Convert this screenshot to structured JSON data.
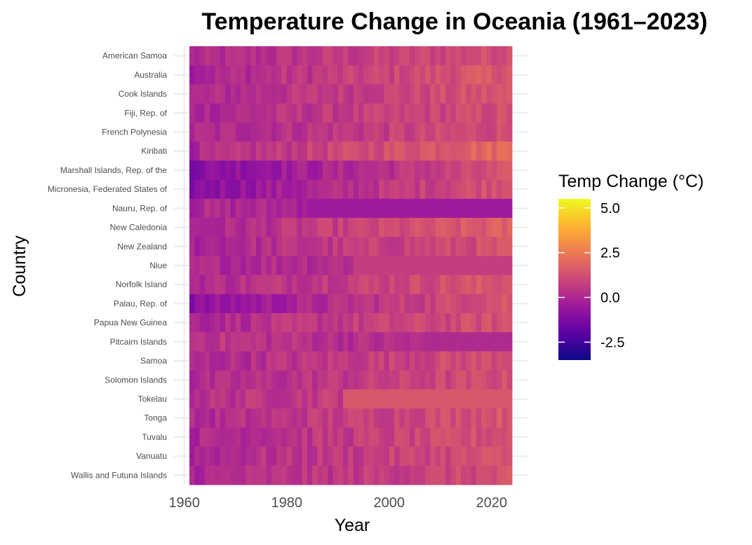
{
  "chart_data": {
    "type": "heatmap",
    "title": "Temperature Change in Oceania (1961–2023)",
    "xlabel": "Year",
    "ylabel": "Country",
    "x_ticks": [
      1960,
      1980,
      2000,
      2020
    ],
    "xlim": [
      1961,
      2023
    ],
    "countries": [
      "American Samoa",
      "Australia",
      "Cook Islands",
      "Fiji, Rep. of",
      "French Polynesia",
      "Kiribati",
      "Marshall Islands, Rep. of the",
      "Micronesia, Federated States of",
      "Nauru, Rep. of",
      "New Caledonia",
      "New Zealand",
      "Niue",
      "Norfolk Island",
      "Palau, Rep. of",
      "Papua New Guinea",
      "Pitcairn Islands",
      "Samoa",
      "Solomon Islands",
      "Tokelau",
      "Tonga",
      "Tuvalu",
      "Vanuatu",
      "Wallis and Futuna Islands"
    ],
    "series_profiles": [
      {
        "start": 0.0,
        "end": 1.3,
        "flat_from": null,
        "flat_value": null
      },
      {
        "start": -0.1,
        "end": 1.6,
        "flat_from": null,
        "flat_value": null
      },
      {
        "start": 0.0,
        "end": 1.4,
        "flat_from": null,
        "flat_value": null
      },
      {
        "start": 0.0,
        "end": 1.2,
        "flat_from": null,
        "flat_value": null
      },
      {
        "start": 0.0,
        "end": 1.2,
        "flat_from": null,
        "flat_value": null
      },
      {
        "start": 0.0,
        "end": 2.1,
        "flat_from": null,
        "flat_value": null
      },
      {
        "start": -1.0,
        "end": 1.2,
        "flat_from": null,
        "flat_value": null
      },
      {
        "start": -1.0,
        "end": 1.5,
        "flat_from": null,
        "flat_value": null
      },
      {
        "start": 0.0,
        "end": 0.0,
        "flat_from": 1984,
        "flat_value": -0.4
      },
      {
        "start": -0.1,
        "end": 1.7,
        "flat_from": null,
        "flat_value": null
      },
      {
        "start": -0.1,
        "end": 1.3,
        "flat_from": null,
        "flat_value": null
      },
      {
        "start": 0.0,
        "end": 0.7,
        "flat_from": 1993,
        "flat_value": 0.7
      },
      {
        "start": 0.1,
        "end": 1.5,
        "flat_from": null,
        "flat_value": null
      },
      {
        "start": -0.9,
        "end": 1.5,
        "flat_from": null,
        "flat_value": null
      },
      {
        "start": 0.0,
        "end": 1.3,
        "flat_from": null,
        "flat_value": null
      },
      {
        "start": 0.5,
        "end": 0.0,
        "flat_from": 2007,
        "flat_value": 0.1
      },
      {
        "start": 0.0,
        "end": 1.3,
        "flat_from": null,
        "flat_value": null
      },
      {
        "start": 0.0,
        "end": 1.2,
        "flat_from": null,
        "flat_value": null
      },
      {
        "start": 0.3,
        "end": 1.2,
        "flat_from": 1991,
        "flat_value": 1.5
      },
      {
        "start": 0.0,
        "end": 1.5,
        "flat_from": null,
        "flat_value": null
      },
      {
        "start": 0.0,
        "end": 1.3,
        "flat_from": null,
        "flat_value": null
      },
      {
        "start": 0.0,
        "end": 1.3,
        "flat_from": null,
        "flat_value": null
      },
      {
        "start": 0.0,
        "end": 1.2,
        "flat_from": null,
        "flat_value": null
      }
    ],
    "color_scale": {
      "name": "plasma",
      "min": -3.5,
      "max": 5.5,
      "stops": [
        "#0d0887",
        "#5c01a6",
        "#9c179e",
        "#cc4778",
        "#ed7953",
        "#fdb42f",
        "#f0f921"
      ]
    },
    "legend": {
      "title": "Temp Change (°C)",
      "ticks": [
        5.0,
        2.5,
        0.0,
        -2.5
      ],
      "tick_labels": [
        "5.0",
        "2.5",
        "0.0",
        "-2.5"
      ],
      "placement": "right"
    }
  }
}
